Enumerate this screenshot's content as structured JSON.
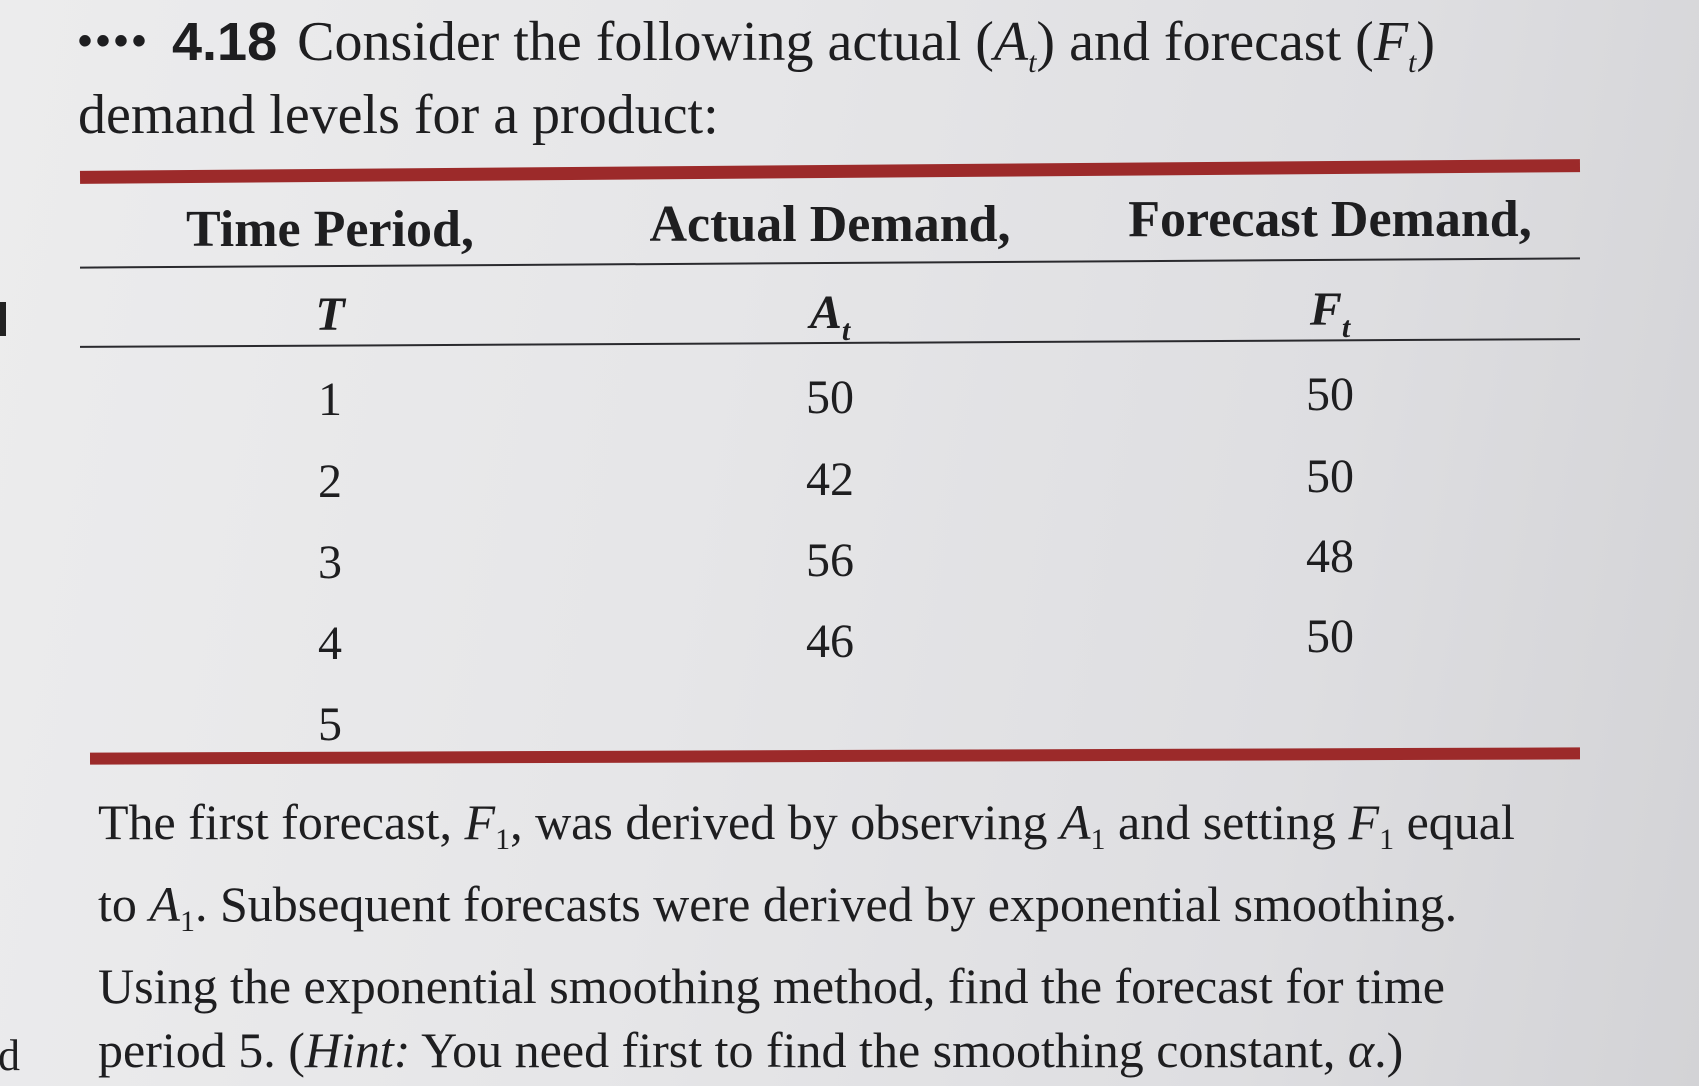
{
  "problem": {
    "dots": "••••",
    "number": "4.18",
    "intro_line1_a": "Consider the following actual ",
    "intro_sym_actual": "A",
    "intro_sub_actual": "t",
    "intro_line1_b": " and forecast ",
    "intro_sym_forecast": "F",
    "intro_sub_forecast": "t",
    "intro_line2": "demand levels for a product:"
  },
  "table": {
    "headers": [
      "Time Period,",
      "Actual Demand,",
      "Forecast Demand,"
    ],
    "subheaders": [
      {
        "sym": "T",
        "sub": ""
      },
      {
        "sym": "A",
        "sub": "t"
      },
      {
        "sym": "F",
        "sub": "t"
      }
    ],
    "rows": [
      {
        "t": "1",
        "a": "50",
        "f": "50"
      },
      {
        "t": "2",
        "a": "42",
        "f": "50"
      },
      {
        "t": "3",
        "a": "56",
        "f": "48"
      },
      {
        "t": "4",
        "a": "46",
        "f": "50"
      },
      {
        "t": "5",
        "a": "",
        "f": ""
      }
    ]
  },
  "paragraph": {
    "l1_a": "The first forecast, ",
    "l1_f1": "F",
    "l1_sub1": "1",
    "l1_b": ", was derived by observing ",
    "l1_a1": "A",
    "l1_sub2": "1",
    "l1_c": " and setting ",
    "l1_f2": "F",
    "l1_sub3": "1",
    "l1_d": " equal",
    "l2_a": "to ",
    "l2_a1": "A",
    "l2_sub": "1",
    "l2_b": ". Subsequent forecasts were derived by exponential smoothing.",
    "l3": "Using the exponential smoothing method, find the forecast for time",
    "l4_a": "period 5. (",
    "l4_hint": "Hint:",
    "l4_b": " You need first to find the smoothing constant, ",
    "l4_alpha": "α",
    "l4_c": ".)"
  },
  "margin_fragment": "d"
}
